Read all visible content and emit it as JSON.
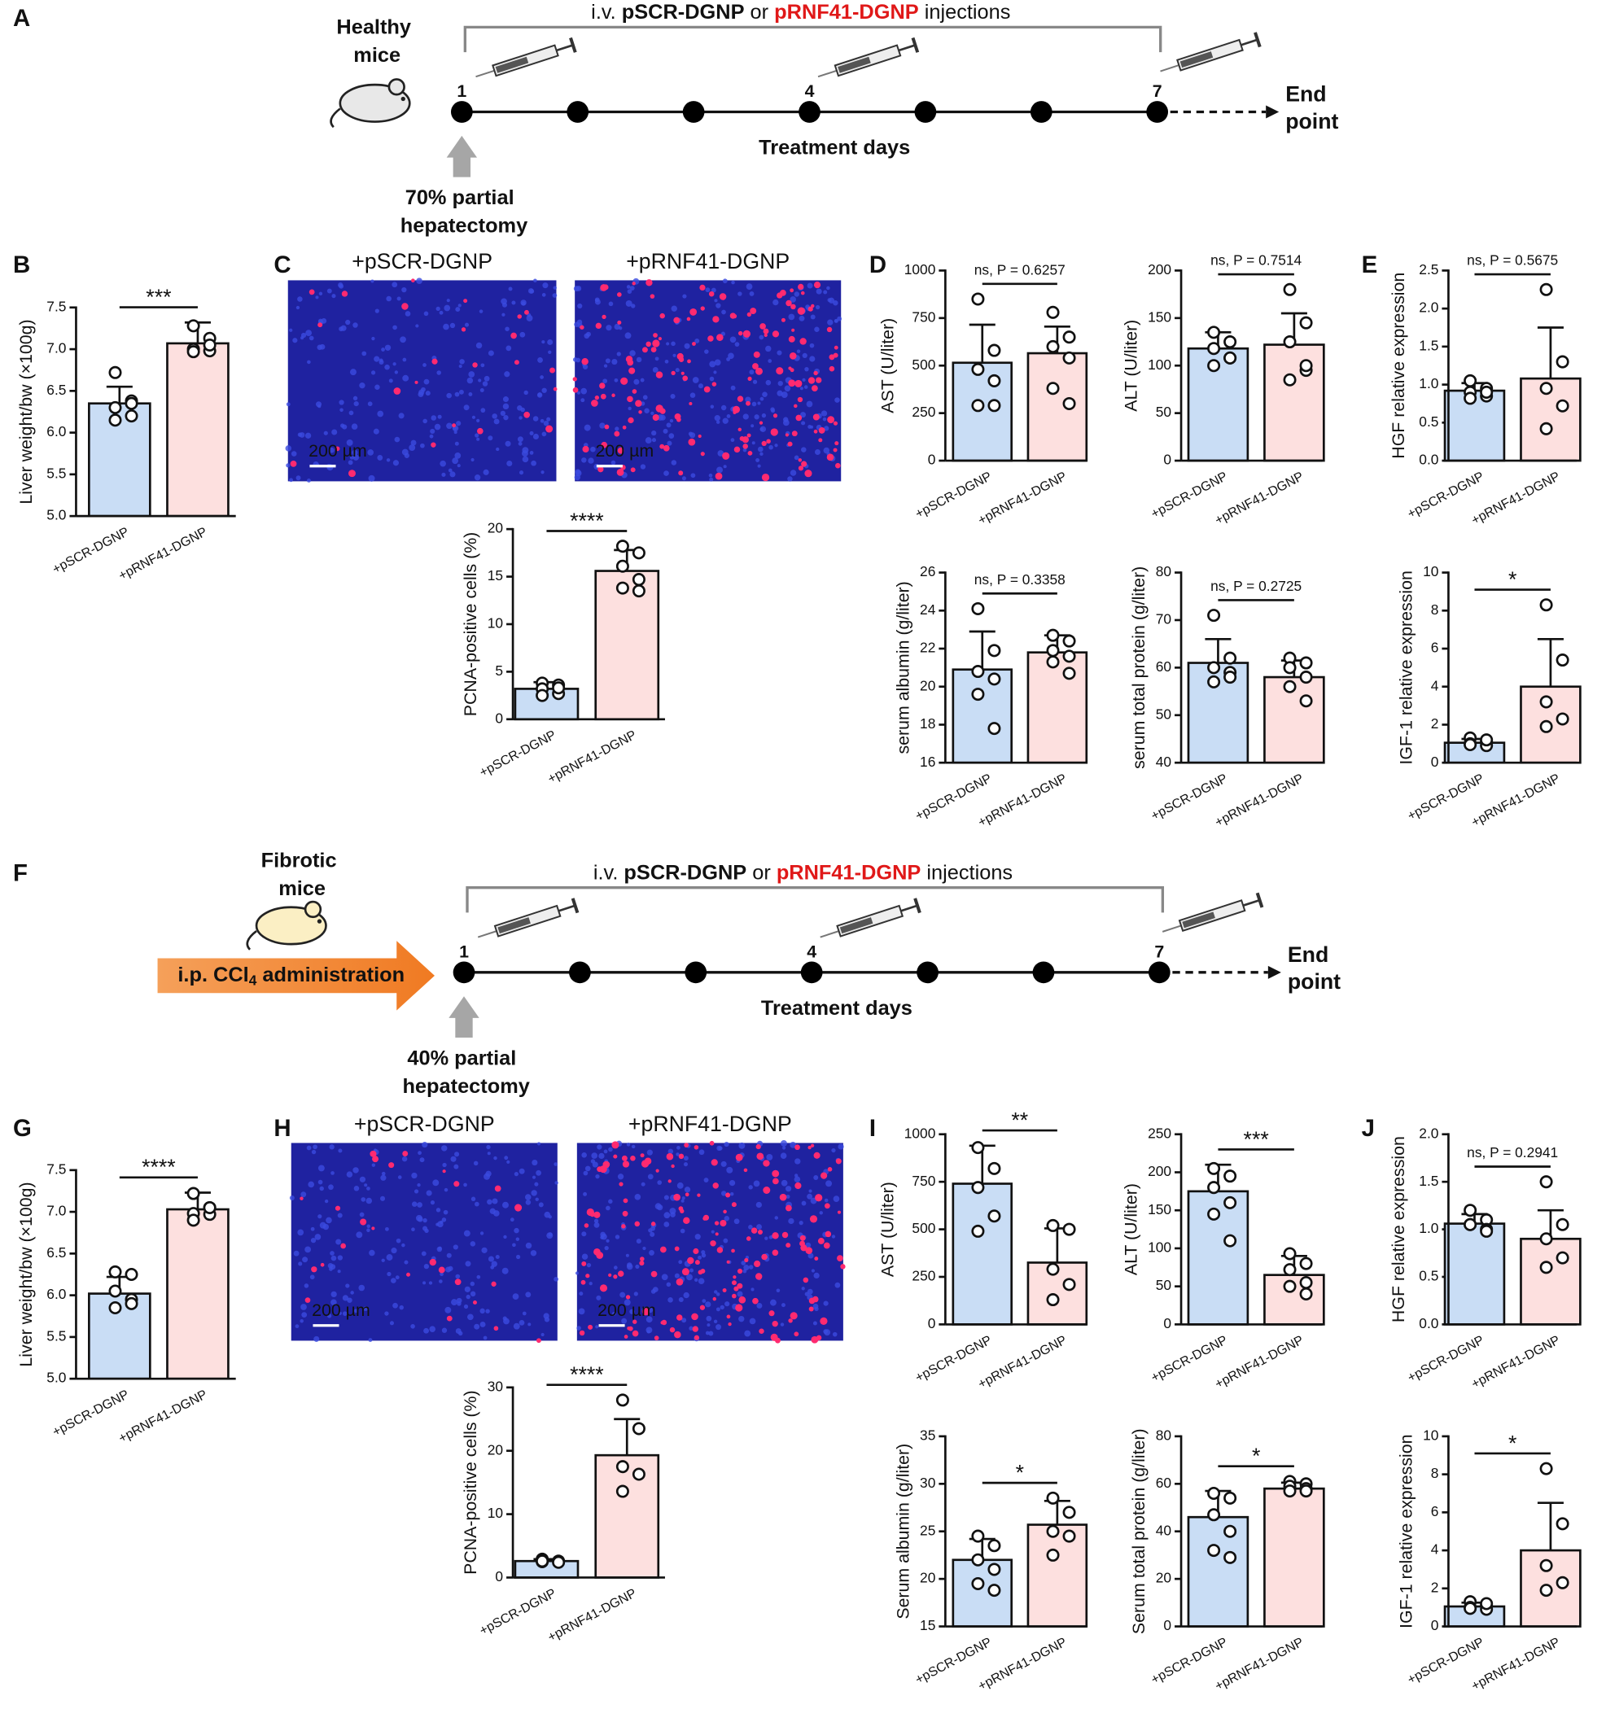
{
  "panel_labels": [
    "A",
    "B",
    "C",
    "D",
    "E",
    "F",
    "G",
    "H",
    "I",
    "J"
  ],
  "timeline_a": {
    "title": [
      "i.v. ",
      "pSCR-DGNP",
      " or ",
      "pRNF41-DGNP",
      " injections"
    ],
    "subject": [
      "Healthy",
      "mice"
    ],
    "days": [
      "1",
      "4",
      "7"
    ],
    "axis_label": "Treatment days",
    "end": [
      "End",
      "point"
    ],
    "surgery": [
      "70% partial",
      "hepatectomy"
    ]
  },
  "timeline_f": {
    "title": [
      "i.v. ",
      "pSCR-DGNP",
      " or ",
      "pRNF41-DGNP",
      " injections"
    ],
    "subject": [
      "Fibrotic",
      "mice"
    ],
    "pretreatment": [
      "i.p. CCl",
      "4",
      " administration"
    ],
    "days": [
      "1",
      "4",
      "7"
    ],
    "axis_label": "Treatment days",
    "end": [
      "End",
      "point"
    ],
    "surgery": [
      "40% partial",
      "hepatectomy"
    ]
  },
  "images": [
    {
      "label": "+pSCR-DGNP",
      "scale": "200 µm"
    },
    {
      "label": "+pRNF41-DGNP",
      "scale": "200 µm"
    },
    {
      "label": "+pSCR-DGNP",
      "scale": "200 µm"
    },
    {
      "label": "+pRNF41-DGNP",
      "scale": "200 µm"
    }
  ],
  "chart_data": [
    {
      "type": "bar",
      "ylabel": "Liver weight/bw (×100g)",
      "categories": [
        "+pSCR-DGNP",
        "+pRNF41-DGNP"
      ],
      "colors": [
        "#c9ddf5",
        "#fde0df"
      ],
      "values": [
        6.35,
        7.07
      ],
      "errors": [
        0.2,
        0.25
      ],
      "points": [
        [
          6.72,
          6.38,
          6.3,
          6.2,
          6.15,
          6.35
        ],
        [
          7.28,
          7.13,
          7.0,
          6.98,
          6.97,
          7.05
        ]
      ],
      "ylim": [
        5,
        7.5
      ],
      "yticks": [
        {
          "value": 5,
          "label": "5.0"
        },
        {
          "value": 5.5,
          "label": "5.5"
        },
        {
          "value": 6,
          "label": "6.0"
        },
        {
          "value": 6.5,
          "label": "6.5"
        },
        {
          "value": 7,
          "label": "7.0"
        },
        {
          "value": 7.5,
          "label": "7.5"
        }
      ],
      "annotation": "***"
    },
    {
      "type": "bar",
      "ylabel": "PCNA-positive cells (%)",
      "categories": [
        "+pSCR-DGNP",
        "+pRNF41-DGNP"
      ],
      "colors": [
        "#c9ddf5",
        "#fde0df"
      ],
      "values": [
        3.2,
        15.6
      ],
      "errors": [
        0.7,
        2.2
      ],
      "points": [
        [
          3.8,
          3.6,
          3.2,
          2.7,
          2.5,
          3.3
        ],
        [
          18.2,
          17.5,
          16.1,
          13.5,
          13.8,
          14.7
        ]
      ],
      "ylim": [
        0,
        20
      ],
      "yticks": [
        0,
        5,
        10,
        15,
        20
      ],
      "annotation": "****"
    },
    {
      "type": "bar",
      "ylabel": "AST (U/liter)",
      "categories": [
        "+pSCR-DGNP",
        "+pRNF41-DGNP"
      ],
      "colors": [
        "#c9ddf5",
        "#fde0df"
      ],
      "values": [
        515,
        565
      ],
      "errors": [
        200,
        140
      ],
      "points": [
        [
          850,
          580,
          480,
          420,
          290,
          290
        ],
        [
          780,
          650,
          600,
          540,
          380,
          300
        ]
      ],
      "ylim": [
        0,
        1000
      ],
      "yticks": [
        0,
        250,
        500,
        750,
        1000
      ],
      "annotation": "ns, P = 0.6257"
    },
    {
      "type": "bar",
      "ylabel": "ALT (U/liter)",
      "categories": [
        "+pSCR-DGNP",
        "+pRNF41-DGNP"
      ],
      "colors": [
        "#c9ddf5",
        "#fde0df"
      ],
      "values": [
        118,
        122
      ],
      "errors": [
        17,
        33
      ],
      "points": [
        [
          135,
          125,
          118,
          108,
          100,
          108
        ],
        [
          180,
          145,
          125,
          95,
          85,
          100
        ]
      ],
      "ylim": [
        0,
        200
      ],
      "yticks": [
        0,
        50,
        100,
        150,
        200
      ],
      "annotation": "ns, P = 0.7514"
    },
    {
      "type": "bar",
      "ylabel": "HGF relative expression",
      "categories": [
        "+pSCR-DGNP",
        "+pRNF41-DGNP"
      ],
      "colors": [
        "#c9ddf5",
        "#fde0df"
      ],
      "values": [
        0.92,
        1.08
      ],
      "errors": [
        0.1,
        0.67
      ],
      "points": [
        [
          1.05,
          0.95,
          0.9,
          0.85,
          0.82,
          0.9
        ],
        [
          2.25,
          1.3,
          0.95,
          0.72,
          0.42
        ]
      ],
      "ylim": [
        0,
        2.5
      ],
      "yticks": [
        {
          "value": 0,
          "label": "0.0"
        },
        {
          "value": 0.5,
          "label": "0.5"
        },
        {
          "value": 1,
          "label": "1.0"
        },
        {
          "value": 1.5,
          "label": "1.5"
        },
        {
          "value": 2,
          "label": "2.0"
        },
        {
          "value": 2.5,
          "label": "2.5"
        }
      ],
      "annotation": "ns, P = 0.5675"
    },
    {
      "type": "bar",
      "ylabel": "serum albumin (g/liter)",
      "categories": [
        "+pSCR-DGNP",
        "+pRNF41-DGNP"
      ],
      "colors": [
        "#c9ddf5",
        "#fde0df"
      ],
      "values": [
        20.9,
        21.8
      ],
      "errors": [
        2.0,
        0.9
      ],
      "points": [
        [
          24.1,
          21.9,
          20.8,
          20.4,
          19.6,
          17.8
        ],
        [
          22.7,
          22.4,
          21.9,
          21.6,
          21.3,
          20.7
        ]
      ],
      "ylim": [
        16,
        26
      ],
      "yticks": [
        16,
        18,
        20,
        22,
        24,
        26
      ],
      "annotation": "ns, P = 0.3358"
    },
    {
      "type": "bar",
      "ylabel": "serum total protein (g/liter)",
      "categories": [
        "+pSCR-DGNP",
        "+pRNF41-DGNP"
      ],
      "colors": [
        "#c9ddf5",
        "#fde0df"
      ],
      "values": [
        61,
        58
      ],
      "errors": [
        5,
        3.5
      ],
      "points": [
        [
          71,
          62,
          60,
          59,
          57,
          58
        ],
        [
          62,
          61,
          60,
          58,
          56,
          53
        ]
      ],
      "ylim": [
        40,
        80
      ],
      "yticks": [
        40,
        50,
        60,
        70,
        80
      ],
      "annotation": "ns, P = 0.2725"
    },
    {
      "type": "bar",
      "ylabel": "IGF-1 relative expression",
      "categories": [
        "+pSCR-DGNP",
        "+pRNF41-DGNP"
      ],
      "colors": [
        "#c9ddf5",
        "#fde0df"
      ],
      "values": [
        1.05,
        4.0
      ],
      "errors": [
        0.2,
        2.5
      ],
      "points": [
        [
          1.3,
          1.1,
          1.0,
          0.9,
          0.95,
          1.2
        ],
        [
          8.3,
          5.4,
          3.2,
          2.3,
          1.9
        ]
      ],
      "ylim": [
        0,
        10
      ],
      "yticks": [
        0,
        2,
        4,
        6,
        8,
        10
      ],
      "annotation": "*"
    },
    {
      "type": "bar",
      "ylabel": "Liver weight/bw (×100g)",
      "categories": [
        "+pSCR-DGNP",
        "+pRNF41-DGNP"
      ],
      "colors": [
        "#c9ddf5",
        "#fde0df"
      ],
      "values": [
        6.02,
        7.03
      ],
      "errors": [
        0.2,
        0.2
      ],
      "points": [
        [
          6.28,
          6.25,
          6.05,
          5.95,
          5.85,
          5.9
        ],
        [
          7.22,
          7.05,
          6.98,
          6.97,
          6.9,
          7.05
        ]
      ],
      "ylim": [
        5,
        7.5
      ],
      "yticks": [
        {
          "value": 5,
          "label": "5.0"
        },
        {
          "value": 5.5,
          "label": "5.5"
        },
        {
          "value": 6,
          "label": "6.0"
        },
        {
          "value": 6.5,
          "label": "6.5"
        },
        {
          "value": 7,
          "label": "7.0"
        },
        {
          "value": 7.5,
          "label": "7.5"
        }
      ],
      "annotation": "****"
    },
    {
      "type": "bar",
      "ylabel": "PCNA-positive cells (%)",
      "categories": [
        "+pSCR-DGNP",
        "+pRNF41-DGNP"
      ],
      "colors": [
        "#c9ddf5",
        "#fde0df"
      ],
      "values": [
        2.6,
        19.3
      ],
      "errors": [
        0.3,
        5.7
      ],
      "points": [
        [
          2.9,
          2.6,
          2.5,
          2.4,
          2.6
        ],
        [
          28,
          23.5,
          17.5,
          16.3,
          13.6
        ]
      ],
      "ylim": [
        0,
        30
      ],
      "yticks": [
        0,
        10,
        20,
        30
      ],
      "annotation": "****"
    },
    {
      "type": "bar",
      "ylabel": "AST (U/liter)",
      "categories": [
        "+pSCR-DGNP",
        "+pRNF41-DGNP"
      ],
      "colors": [
        "#c9ddf5",
        "#fde0df"
      ],
      "values": [
        740,
        325
      ],
      "errors": [
        200,
        180
      ],
      "points": [
        [
          930,
          820,
          720,
          570,
          490
        ],
        [
          520,
          500,
          290,
          210,
          130
        ]
      ],
      "ylim": [
        0,
        1000
      ],
      "yticks": [
        0,
        250,
        500,
        750,
        1000
      ],
      "annotation": "**"
    },
    {
      "type": "bar",
      "ylabel": "ALT (U/liter)",
      "categories": [
        "+pSCR-DGNP",
        "+pRNF41-DGNP"
      ],
      "colors": [
        "#c9ddf5",
        "#fde0df"
      ],
      "values": [
        175,
        65
      ],
      "errors": [
        35,
        25
      ],
      "points": [
        [
          205,
          195,
          180,
          160,
          145,
          110
        ],
        [
          93,
          80,
          72,
          55,
          50,
          40
        ]
      ],
      "ylim": [
        0,
        250
      ],
      "yticks": [
        0,
        50,
        100,
        150,
        200,
        250
      ],
      "annotation": "***"
    },
    {
      "type": "bar",
      "ylabel": "HGF relative expression",
      "categories": [
        "+pSCR-DGNP",
        "+pRNF41-DGNP"
      ],
      "colors": [
        "#c9ddf5",
        "#fde0df"
      ],
      "values": [
        1.06,
        0.9
      ],
      "errors": [
        0.1,
        0.3
      ],
      "points": [
        [
          1.2,
          1.1,
          1.05,
          1.0,
          1.05,
          0.98
        ],
        [
          1.5,
          1.05,
          0.9,
          0.7,
          0.6
        ]
      ],
      "ylim": [
        0,
        2
      ],
      "yticks": [
        {
          "value": 0,
          "label": "0.0"
        },
        {
          "value": 0.5,
          "label": "0.5"
        },
        {
          "value": 1,
          "label": "1.0"
        },
        {
          "value": 1.5,
          "label": "1.5"
        },
        {
          "value": 2,
          "label": "2.0"
        }
      ],
      "annotation": "ns, P = 0.2941"
    },
    {
      "type": "bar",
      "ylabel": "Serum albumin (g/liter)",
      "categories": [
        "+pSCR-DGNP",
        "+pRNF41-DGNP"
      ],
      "colors": [
        "#c9ddf5",
        "#fde0df"
      ],
      "values": [
        22,
        25.7
      ],
      "errors": [
        2.2,
        2.5
      ],
      "points": [
        [
          24.5,
          23.5,
          22,
          21,
          19.5,
          18.8
        ],
        [
          28.5,
          27,
          25,
          24.5,
          22.5
        ]
      ],
      "ylim": [
        15,
        35
      ],
      "yticks": [
        15,
        20,
        25,
        30,
        35
      ],
      "annotation": "*"
    },
    {
      "type": "bar",
      "ylabel": "Serum total protein (g/liter)",
      "categories": [
        "+pSCR-DGNP",
        "+pRNF41-DGNP"
      ],
      "colors": [
        "#c9ddf5",
        "#fde0df"
      ],
      "values": [
        46,
        58
      ],
      "errors": [
        11,
        2.5
      ],
      "points": [
        [
          56,
          54,
          47,
          40,
          32,
          29
        ],
        [
          61,
          60,
          59,
          58,
          57,
          57
        ]
      ],
      "ylim": [
        0,
        80
      ],
      "yticks": [
        0,
        20,
        40,
        60,
        80
      ],
      "annotation": "*"
    },
    {
      "type": "bar",
      "ylabel": "IGF-1 relative expression",
      "categories": [
        "+pSCR-DGNP",
        "+pRNF41-DGNP"
      ],
      "colors": [
        "#c9ddf5",
        "#fde0df"
      ],
      "values": [
        1.05,
        4.0
      ],
      "errors": [
        0.2,
        2.5
      ],
      "points": [
        [
          1.3,
          1.1,
          1.0,
          0.9,
          0.95,
          1.2
        ],
        [
          8.3,
          5.4,
          3.2,
          2.3,
          1.9
        ]
      ],
      "ylim": [
        0,
        10
      ],
      "yticks": [
        0,
        2,
        4,
        6,
        8,
        10
      ],
      "annotation": "*"
    }
  ]
}
